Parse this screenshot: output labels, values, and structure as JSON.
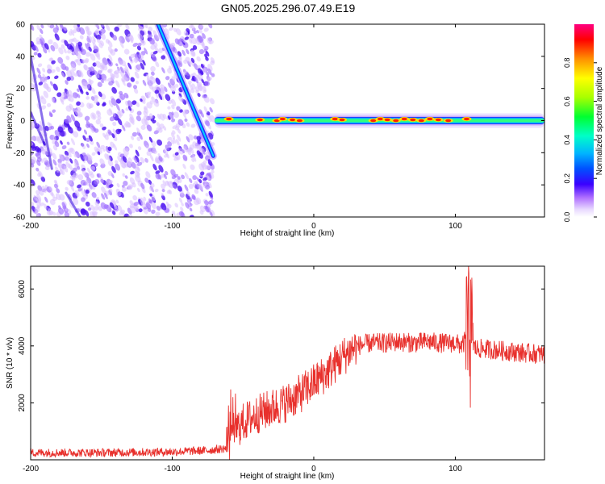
{
  "title": "GN05.2025.296.07.49.E19",
  "chart_data": [
    {
      "type": "heatmap",
      "title": "GN05.2025.296.07.49.E19",
      "xlabel": "Height of straight line (km)",
      "ylabel": "Frequency (Hz)",
      "xlim": [
        -200,
        163
      ],
      "ylim": [
        -60,
        60
      ],
      "xticks": [
        -200,
        -100,
        0,
        100
      ],
      "yticks": [
        -60,
        -40,
        -20,
        0,
        20,
        40,
        60
      ],
      "colorbar": {
        "label": "Normalized spectral amplitude",
        "range": [
          0,
          1
        ],
        "ticks": [
          0.0,
          0.2,
          0.4,
          0.6,
          0.8
        ],
        "colors": [
          "#ffffff",
          "#e0c8ff",
          "#a060ff",
          "#3000ff",
          "#0040ff",
          "#00b0ff",
          "#00ffd0",
          "#00ff40",
          "#a0ff00",
          "#ffff00",
          "#ff9000",
          "#ff0000",
          "#ff0080"
        ]
      },
      "features": {
        "diagonal_track": {
          "x": [
            -110,
            -71
          ],
          "y": [
            60,
            -22
          ]
        },
        "noise_region_x": [
          -200,
          -70
        ],
        "horizontal_track_x": [
          -70,
          163
        ],
        "horizontal_track_y": 0
      }
    },
    {
      "type": "line",
      "xlabel": "Height of straight line (km)",
      "ylabel": "SNR (10 * v/v)",
      "xlim": [
        -200,
        163
      ],
      "ylim": [
        0,
        6800
      ],
      "xticks": [
        -200,
        -100,
        0,
        100
      ],
      "yticks": [
        2000,
        4000,
        6000
      ],
      "series": [
        {
          "name": "SNR",
          "color": "#e8302c",
          "x": [
            -200,
            -150,
            -100,
            -75,
            -62,
            -60,
            -55,
            -50,
            -40,
            -30,
            -20,
            -10,
            0,
            10,
            20,
            25,
            30,
            40,
            50,
            60,
            70,
            80,
            90,
            100,
            105,
            108,
            110,
            112,
            115,
            120,
            130,
            140,
            150,
            163
          ],
          "y": [
            250,
            250,
            280,
            330,
            400,
            1150,
            1050,
            1300,
            1600,
            1800,
            2000,
            2300,
            2700,
            3100,
            3600,
            3800,
            4000,
            4100,
            4100,
            4150,
            4100,
            4150,
            4100,
            4100,
            4000,
            4300,
            4200,
            4000,
            3900,
            3900,
            3850,
            3800,
            3750,
            3700
          ]
        }
      ]
    }
  ]
}
